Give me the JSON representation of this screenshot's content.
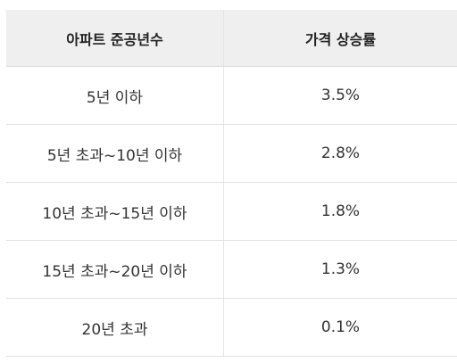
{
  "table": {
    "headers": [
      "아파트 준공년수",
      "가격 상승률"
    ],
    "rows": [
      [
        "5년 이하",
        "3.5%"
      ],
      [
        "5년 초과~10년 이하",
        "2.8%"
      ],
      [
        "10년 초과~15년 이하",
        "1.8%"
      ],
      [
        "15년 초과~20년 이하",
        "1.3%"
      ],
      [
        "20년 초과",
        "0.1%"
      ]
    ]
  }
}
